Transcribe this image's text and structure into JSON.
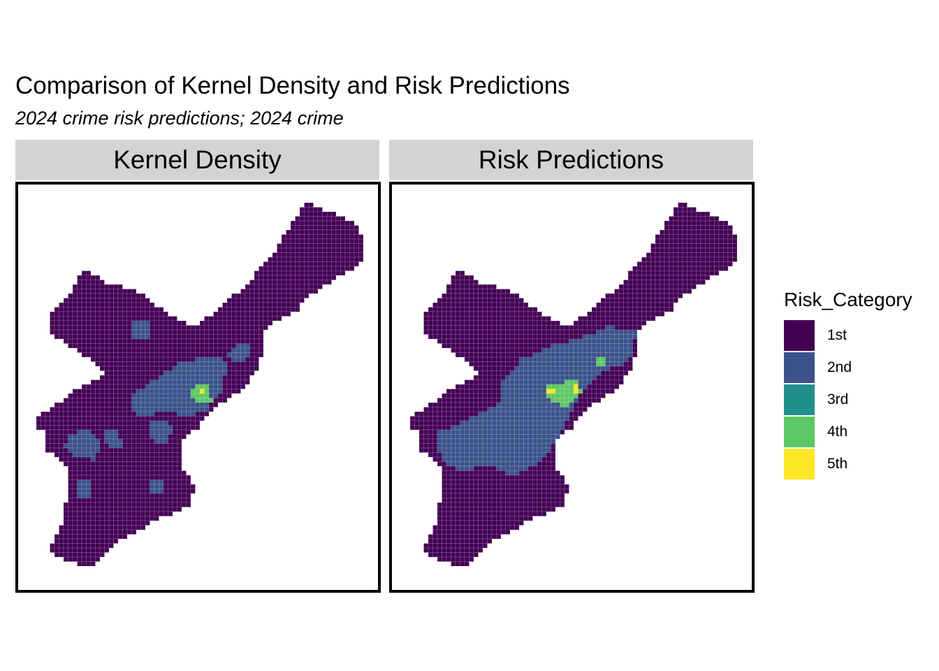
{
  "chart_data": {
    "type": "heatmap",
    "title": "Comparison of Kernel Density and Risk Predictions",
    "subtitle": "2024 crime risk predictions; 2024 crime",
    "panels": [
      {
        "name": "Kernel Density",
        "areas": [
          {
            "category": "2nd",
            "polygon": [
              [
                0.31,
                0.52
              ],
              [
                0.4,
                0.47
              ],
              [
                0.45,
                0.44
              ],
              [
                0.54,
                0.42
              ],
              [
                0.58,
                0.44
              ],
              [
                0.57,
                0.5
              ],
              [
                0.52,
                0.56
              ],
              [
                0.47,
                0.57
              ],
              [
                0.41,
                0.56
              ],
              [
                0.35,
                0.57
              ],
              [
                0.31,
                0.56
              ]
            ]
          },
          {
            "category": "2nd",
            "polygon": [
              [
                0.58,
                0.42
              ],
              [
                0.62,
                0.39
              ],
              [
                0.65,
                0.4
              ],
              [
                0.64,
                0.43
              ],
              [
                0.6,
                0.44
              ]
            ]
          },
          {
            "category": "2nd",
            "polygon": [
              [
                0.36,
                0.59
              ],
              [
                0.41,
                0.58
              ],
              [
                0.43,
                0.61
              ],
              [
                0.41,
                0.64
              ],
              [
                0.37,
                0.63
              ]
            ]
          },
          {
            "category": "2nd",
            "polygon": [
              [
                0.14,
                0.62
              ],
              [
                0.2,
                0.6
              ],
              [
                0.23,
                0.64
              ],
              [
                0.21,
                0.68
              ],
              [
                0.15,
                0.67
              ],
              [
                0.13,
                0.65
              ]
            ]
          },
          {
            "category": "2nd",
            "polygon": [
              [
                0.24,
                0.61
              ],
              [
                0.28,
                0.61
              ],
              [
                0.29,
                0.65
              ],
              [
                0.25,
                0.65
              ]
            ]
          },
          {
            "category": "2nd",
            "polygon": [
              [
                0.16,
                0.73
              ],
              [
                0.2,
                0.73
              ],
              [
                0.2,
                0.77
              ],
              [
                0.16,
                0.77
              ]
            ]
          },
          {
            "category": "2nd",
            "polygon": [
              [
                0.32,
                0.34
              ],
              [
                0.36,
                0.34
              ],
              [
                0.36,
                0.38
              ],
              [
                0.32,
                0.38
              ]
            ]
          },
          {
            "category": "2nd",
            "polygon": [
              [
                0.36,
                0.73
              ],
              [
                0.4,
                0.73
              ],
              [
                0.4,
                0.76
              ],
              [
                0.36,
                0.76
              ]
            ]
          },
          {
            "category": "4th",
            "polygon": [
              [
                0.48,
                0.5
              ],
              [
                0.53,
                0.49
              ],
              [
                0.54,
                0.54
              ],
              [
                0.49,
                0.54
              ]
            ]
          },
          {
            "category": "5th",
            "polygon": [
              [
                0.505,
                0.505
              ],
              [
                0.52,
                0.505
              ],
              [
                0.52,
                0.52
              ],
              [
                0.505,
                0.52
              ]
            ]
          }
        ]
      },
      {
        "name": "Risk Predictions",
        "areas": [
          {
            "category": "2nd",
            "polygon": [
              [
                0.13,
                0.61
              ],
              [
                0.21,
                0.58
              ],
              [
                0.3,
                0.54
              ],
              [
                0.31,
                0.48
              ],
              [
                0.36,
                0.43
              ],
              [
                0.44,
                0.4
              ],
              [
                0.51,
                0.38
              ],
              [
                0.56,
                0.37
              ],
              [
                0.6,
                0.35
              ],
              [
                0.68,
                0.36
              ],
              [
                0.66,
                0.44
              ],
              [
                0.58,
                0.46
              ],
              [
                0.52,
                0.52
              ],
              [
                0.48,
                0.6
              ],
              [
                0.42,
                0.68
              ],
              [
                0.33,
                0.72
              ],
              [
                0.27,
                0.69
              ],
              [
                0.2,
                0.71
              ],
              [
                0.15,
                0.69
              ],
              [
                0.12,
                0.65
              ]
            ]
          },
          {
            "category": "4th",
            "polygon": [
              [
                0.43,
                0.5
              ],
              [
                0.51,
                0.48
              ],
              [
                0.53,
                0.51
              ],
              [
                0.48,
                0.55
              ],
              [
                0.43,
                0.53
              ]
            ]
          },
          {
            "category": "4th",
            "polygon": [
              [
                0.57,
                0.43
              ],
              [
                0.59,
                0.43
              ],
              [
                0.59,
                0.445
              ],
              [
                0.57,
                0.445
              ]
            ]
          },
          {
            "category": "5th",
            "polygon": [
              [
                0.43,
                0.5
              ],
              [
                0.45,
                0.5
              ],
              [
                0.45,
                0.52
              ],
              [
                0.43,
                0.52
              ]
            ]
          },
          {
            "category": "5th",
            "polygon": [
              [
                0.5,
                0.49
              ],
              [
                0.52,
                0.49
              ],
              [
                0.52,
                0.515
              ],
              [
                0.5,
                0.515
              ]
            ]
          }
        ]
      }
    ],
    "legend": {
      "title": "Risk_Category",
      "items": [
        {
          "label": "1st",
          "color": "#440154"
        },
        {
          "label": "2nd",
          "color": "#3B528B"
        },
        {
          "label": "3rd",
          "color": "#21908C"
        },
        {
          "label": "4th",
          "color": "#5DC863"
        },
        {
          "label": "5th",
          "color": "#FDE725"
        }
      ]
    },
    "base_category": "1st",
    "grid": true
  }
}
